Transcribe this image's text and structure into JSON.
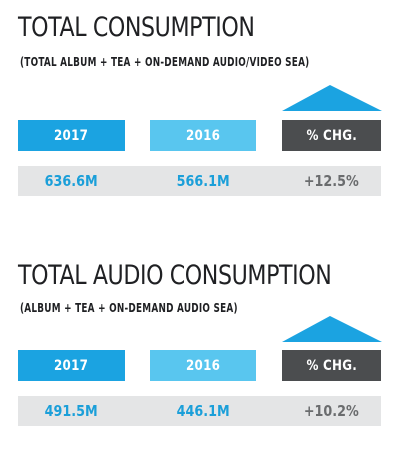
{
  "colors": {
    "blue_dark": "#1ba3e1",
    "blue_light": "#59c6ef",
    "gray_header": "#4b4d4f",
    "value_bg": "#e4e5e6",
    "value_blue_text": "#1b9fd9",
    "value_gray_text": "#6a6c6e"
  },
  "total": {
    "title": "TOTAL CONSUMPTION",
    "subtitle": "(TOTAL ALBUM + TEA + ON-DEMAND AUDIO/VIDEO SEA)",
    "headers": {
      "y2017": "2017",
      "y2016": "2016",
      "chg": "% CHG."
    },
    "values": {
      "y2017": "636.6M",
      "y2016": "566.1M",
      "chg": "+12.5%"
    }
  },
  "audio": {
    "title": "TOTAL AUDIO CONSUMPTION",
    "subtitle": "(ALBUM + TEA + ON-DEMAND AUDIO SEA)",
    "headers": {
      "y2017": "2017",
      "y2016": "2016",
      "chg": "% CHG."
    },
    "values": {
      "y2017": "491.5M",
      "y2016": "446.1M",
      "chg": "+10.2%"
    }
  }
}
